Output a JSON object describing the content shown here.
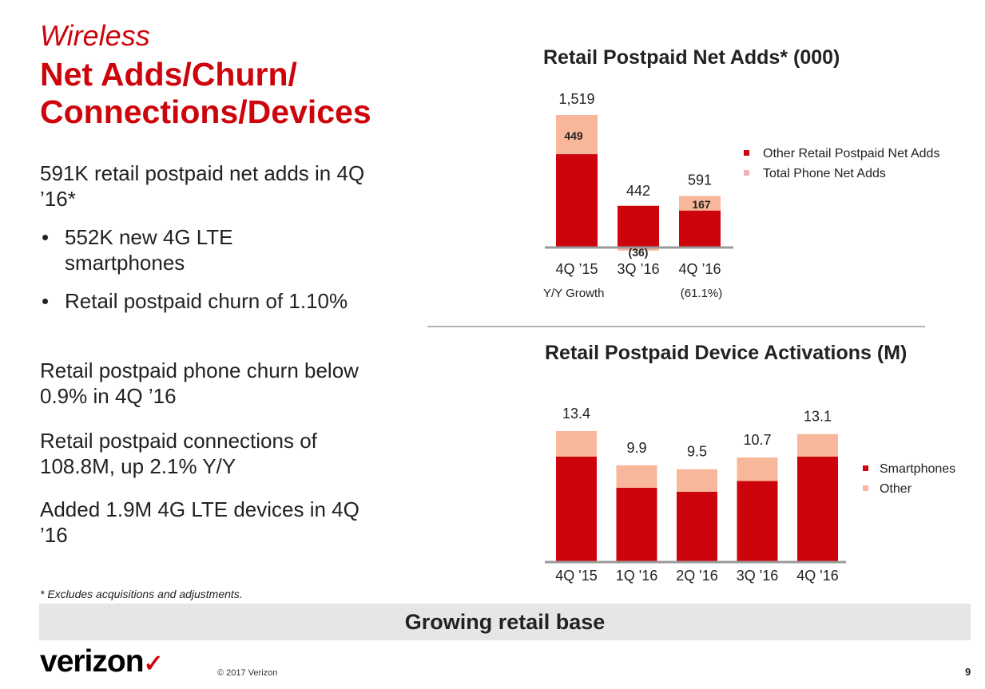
{
  "slide": {
    "section": "Wireless",
    "title": "Net Adds/Churn/ Connections/Devices",
    "paragraphs": [
      "591K retail postpaid net adds in 4Q ’16*",
      "Retail postpaid phone churn below 0.9% in 4Q ’16",
      "Retail postpaid connections of 108.8M, up 2.1% Y/Y",
      "Added 1.9M 4G LTE devices in 4Q ’16"
    ],
    "bullets": [
      "552K new 4G LTE smartphones",
      "Retail postpaid churn of 1.10%"
    ],
    "bullet_marker": "•",
    "footnote": "* Excludes acquisitions and adjustments.",
    "banner": "Growing retail base",
    "logo_text": "verizon",
    "logo_mark": "✓",
    "copyright": "© 2017 Verizon",
    "page_number": "9"
  },
  "colors": {
    "accent_red": "#cd040b",
    "light_salmon": "#f8b79a",
    "legend_pink": "#f4b0b8",
    "axis_gray": "#999999"
  },
  "chart_data": [
    {
      "type": "bar",
      "stacked": true,
      "title": "Retail Postpaid Net Adds* (000)",
      "categories": [
        "4Q ’15",
        "3Q ’16",
        "4Q ’16"
      ],
      "series": [
        {
          "name": "Other Retail Postpaid Net Adds",
          "values": [
            1070,
            478,
            424
          ]
        },
        {
          "name": "Total Phone Net Adds",
          "values": [
            449,
            -36,
            167
          ]
        }
      ],
      "series_labels": [
        "",
        "449",
        "(36)",
        "167"
      ],
      "totals": [
        "1,519",
        "442",
        "591"
      ],
      "growth_label": "Y/Y Growth",
      "growth_values": [
        "",
        "",
        "(61.1%)"
      ],
      "legend_position": "right"
    },
    {
      "type": "bar",
      "stacked": true,
      "title": "Retail Postpaid Device Activations (M)",
      "categories": [
        "4Q '15",
        "1Q '16",
        "2Q '16",
        "3Q '16",
        "4Q '16"
      ],
      "series": [
        {
          "name": "Smartphones",
          "values": [
            10.8,
            7.6,
            7.2,
            8.3,
            10.8
          ]
        },
        {
          "name": "Other",
          "values": [
            2.6,
            2.3,
            2.3,
            2.4,
            2.3
          ]
        }
      ],
      "totals": [
        "13.4",
        "9.9",
        "9.5",
        "10.7",
        "13.1"
      ],
      "legend_position": "right"
    }
  ]
}
